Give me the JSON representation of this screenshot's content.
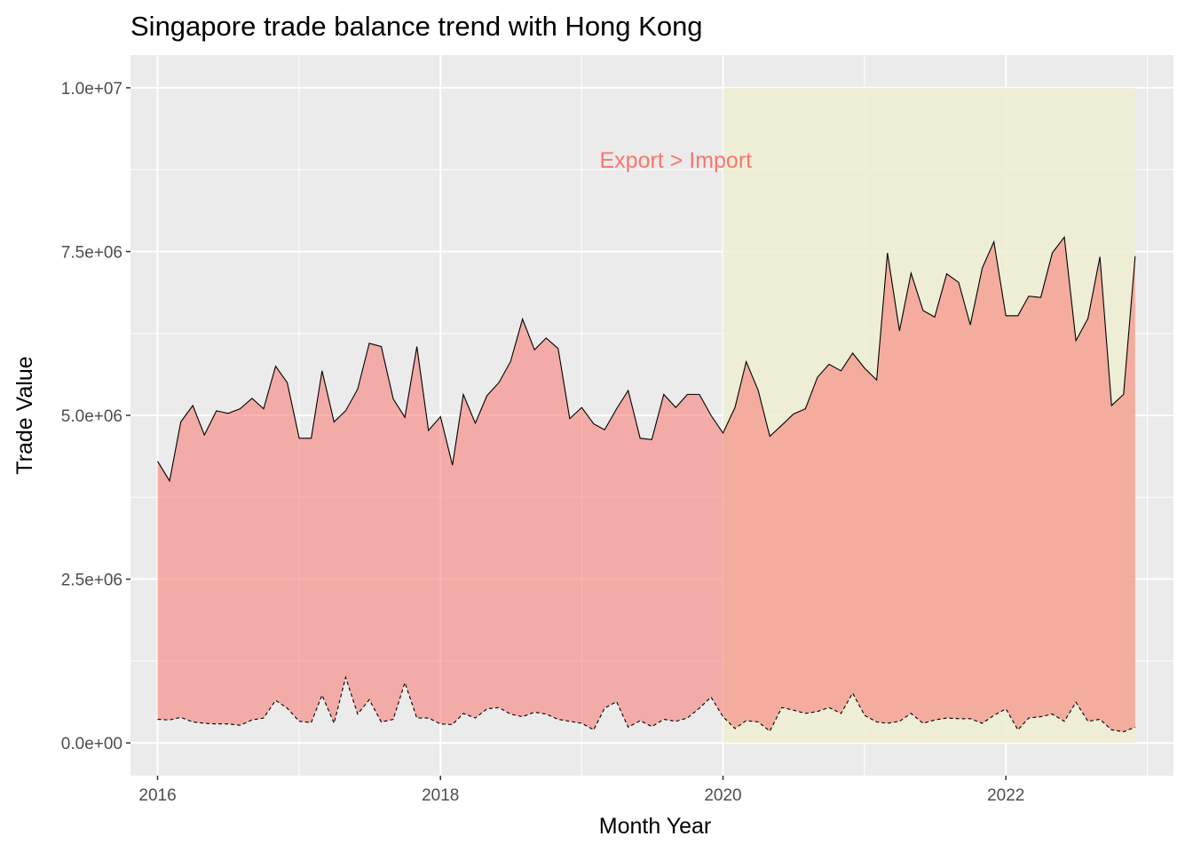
{
  "chart_data": {
    "type": "area",
    "title": "Singapore trade balance trend with Hong Kong",
    "xlabel": "Month Year",
    "ylabel": "Trade Value",
    "xlim": [
      "2015-10-23",
      "2023-03-10"
    ],
    "ylim": [
      -500000,
      10500000
    ],
    "x_ticks": [
      {
        "date": "2016-01-01",
        "label": "2016"
      },
      {
        "date": "2018-01-01",
        "label": "2018"
      },
      {
        "date": "2020-01-01",
        "label": "2020"
      },
      {
        "date": "2022-01-01",
        "label": "2022"
      }
    ],
    "y_ticks": [
      {
        "value": 0,
        "label": "0.0e+00"
      },
      {
        "value": 2500000,
        "label": "2.5e+06"
      },
      {
        "value": 5000000,
        "label": "5.0e+06"
      },
      {
        "value": 7500000,
        "label": "7.5e+06"
      },
      {
        "value": 10000000,
        "label": "1.0e+07"
      }
    ],
    "grid": true,
    "panel_background": "#ebebeb",
    "highlight_region": {
      "x_start": "2020-01-01",
      "x_end": "2022-12-01",
      "y_start": 0,
      "y_end": 10000000,
      "color": "#eeeed4"
    },
    "annotation": {
      "text": "Export > Import",
      "x": "2019-09-01",
      "y": 8900000,
      "color": "#f8766d"
    },
    "fill_color": "#f8766d",
    "series": [
      {
        "name": "Export",
        "line_style": "solid",
        "points": [
          [
            "2016-01-01",
            4300000
          ],
          [
            "2016-02-01",
            4000000
          ],
          [
            "2016-03-01",
            4900000
          ],
          [
            "2016-04-01",
            5150000
          ],
          [
            "2016-05-01",
            4700000
          ],
          [
            "2016-06-01",
            5070000
          ],
          [
            "2016-07-01",
            5030000
          ],
          [
            "2016-08-01",
            5100000
          ],
          [
            "2016-09-01",
            5260000
          ],
          [
            "2016-10-01",
            5100000
          ],
          [
            "2016-11-01",
            5750000
          ],
          [
            "2016-12-01",
            5500000
          ],
          [
            "2017-01-01",
            4650000
          ],
          [
            "2017-02-01",
            4650000
          ],
          [
            "2017-03-01",
            5680000
          ],
          [
            "2017-04-01",
            4900000
          ],
          [
            "2017-05-01",
            5070000
          ],
          [
            "2017-06-01",
            5400000
          ],
          [
            "2017-07-01",
            6100000
          ],
          [
            "2017-08-01",
            6050000
          ],
          [
            "2017-09-01",
            5250000
          ],
          [
            "2017-10-01",
            4970000
          ],
          [
            "2017-11-01",
            6050000
          ],
          [
            "2017-12-01",
            4770000
          ],
          [
            "2018-01-01",
            4980000
          ],
          [
            "2018-02-01",
            4240000
          ],
          [
            "2018-03-01",
            5320000
          ],
          [
            "2018-04-01",
            4880000
          ],
          [
            "2018-05-01",
            5300000
          ],
          [
            "2018-06-01",
            5500000
          ],
          [
            "2018-07-01",
            5820000
          ],
          [
            "2018-08-01",
            6470000
          ],
          [
            "2018-09-01",
            6000000
          ],
          [
            "2018-10-01",
            6180000
          ],
          [
            "2018-11-01",
            6020000
          ],
          [
            "2018-12-01",
            4950000
          ],
          [
            "2019-01-01",
            5120000
          ],
          [
            "2019-02-01",
            4870000
          ],
          [
            "2019-03-01",
            4780000
          ],
          [
            "2019-04-01",
            5100000
          ],
          [
            "2019-05-01",
            5380000
          ],
          [
            "2019-06-01",
            4650000
          ],
          [
            "2019-07-01",
            4630000
          ],
          [
            "2019-08-01",
            5320000
          ],
          [
            "2019-09-01",
            5120000
          ],
          [
            "2019-10-01",
            5320000
          ],
          [
            "2019-11-01",
            5320000
          ],
          [
            "2019-12-01",
            5000000
          ],
          [
            "2020-01-01",
            4730000
          ],
          [
            "2020-02-01",
            5120000
          ],
          [
            "2020-03-01",
            5820000
          ],
          [
            "2020-04-01",
            5380000
          ],
          [
            "2020-05-01",
            4680000
          ],
          [
            "2020-06-01",
            4850000
          ],
          [
            "2020-07-01",
            5020000
          ],
          [
            "2020-08-01",
            5100000
          ],
          [
            "2020-09-01",
            5580000
          ],
          [
            "2020-10-01",
            5780000
          ],
          [
            "2020-11-01",
            5680000
          ],
          [
            "2020-12-01",
            5950000
          ],
          [
            "2021-01-01",
            5720000
          ],
          [
            "2021-02-01",
            5540000
          ],
          [
            "2021-03-01",
            7480000
          ],
          [
            "2021-04-01",
            6290000
          ],
          [
            "2021-05-01",
            7170000
          ],
          [
            "2021-06-01",
            6600000
          ],
          [
            "2021-07-01",
            6500000
          ],
          [
            "2021-08-01",
            7160000
          ],
          [
            "2021-09-01",
            7030000
          ],
          [
            "2021-10-01",
            6380000
          ],
          [
            "2021-11-01",
            7250000
          ],
          [
            "2021-12-01",
            7650000
          ],
          [
            "2022-01-01",
            6520000
          ],
          [
            "2022-02-01",
            6520000
          ],
          [
            "2022-03-01",
            6820000
          ],
          [
            "2022-04-01",
            6800000
          ],
          [
            "2022-05-01",
            7480000
          ],
          [
            "2022-06-01",
            7720000
          ],
          [
            "2022-07-01",
            6140000
          ],
          [
            "2022-08-01",
            6480000
          ],
          [
            "2022-09-01",
            7420000
          ],
          [
            "2022-10-01",
            5150000
          ],
          [
            "2022-11-01",
            5320000
          ],
          [
            "2022-12-01",
            7430000
          ]
        ]
      },
      {
        "name": "Import",
        "line_style": "dashed",
        "points": [
          [
            "2016-01-01",
            360000
          ],
          [
            "2016-02-01",
            350000
          ],
          [
            "2016-03-01",
            390000
          ],
          [
            "2016-04-01",
            320000
          ],
          [
            "2016-05-01",
            300000
          ],
          [
            "2016-06-01",
            290000
          ],
          [
            "2016-07-01",
            290000
          ],
          [
            "2016-08-01",
            270000
          ],
          [
            "2016-09-01",
            350000
          ],
          [
            "2016-10-01",
            380000
          ],
          [
            "2016-11-01",
            650000
          ],
          [
            "2016-12-01",
            530000
          ],
          [
            "2017-01-01",
            330000
          ],
          [
            "2017-02-01",
            310000
          ],
          [
            "2017-03-01",
            730000
          ],
          [
            "2017-04-01",
            300000
          ],
          [
            "2017-05-01",
            1000000
          ],
          [
            "2017-06-01",
            440000
          ],
          [
            "2017-07-01",
            660000
          ],
          [
            "2017-08-01",
            320000
          ],
          [
            "2017-09-01",
            360000
          ],
          [
            "2017-10-01",
            920000
          ],
          [
            "2017-11-01",
            380000
          ],
          [
            "2017-12-01",
            380000
          ],
          [
            "2018-01-01",
            290000
          ],
          [
            "2018-02-01",
            280000
          ],
          [
            "2018-03-01",
            450000
          ],
          [
            "2018-04-01",
            380000
          ],
          [
            "2018-05-01",
            520000
          ],
          [
            "2018-06-01",
            540000
          ],
          [
            "2018-07-01",
            440000
          ],
          [
            "2018-08-01",
            400000
          ],
          [
            "2018-09-01",
            470000
          ],
          [
            "2018-10-01",
            440000
          ],
          [
            "2018-11-01",
            360000
          ],
          [
            "2018-12-01",
            330000
          ],
          [
            "2019-01-01",
            300000
          ],
          [
            "2019-02-01",
            200000
          ],
          [
            "2019-03-01",
            530000
          ],
          [
            "2019-04-01",
            630000
          ],
          [
            "2019-05-01",
            240000
          ],
          [
            "2019-06-01",
            340000
          ],
          [
            "2019-07-01",
            250000
          ],
          [
            "2019-08-01",
            360000
          ],
          [
            "2019-09-01",
            330000
          ],
          [
            "2019-10-01",
            380000
          ],
          [
            "2019-11-01",
            530000
          ],
          [
            "2019-12-01",
            700000
          ],
          [
            "2020-01-01",
            400000
          ],
          [
            "2020-02-01",
            220000
          ],
          [
            "2020-03-01",
            340000
          ],
          [
            "2020-04-01",
            320000
          ],
          [
            "2020-05-01",
            180000
          ],
          [
            "2020-06-01",
            540000
          ],
          [
            "2020-07-01",
            500000
          ],
          [
            "2020-08-01",
            450000
          ],
          [
            "2020-09-01",
            480000
          ],
          [
            "2020-10-01",
            540000
          ],
          [
            "2020-11-01",
            450000
          ],
          [
            "2020-12-01",
            760000
          ],
          [
            "2021-01-01",
            420000
          ],
          [
            "2021-02-01",
            320000
          ],
          [
            "2021-03-01",
            300000
          ],
          [
            "2021-04-01",
            330000
          ],
          [
            "2021-05-01",
            450000
          ],
          [
            "2021-06-01",
            300000
          ],
          [
            "2021-07-01",
            350000
          ],
          [
            "2021-08-01",
            380000
          ],
          [
            "2021-09-01",
            370000
          ],
          [
            "2021-10-01",
            370000
          ],
          [
            "2021-11-01",
            300000
          ],
          [
            "2021-12-01",
            420000
          ],
          [
            "2022-01-01",
            520000
          ],
          [
            "2022-02-01",
            200000
          ],
          [
            "2022-03-01",
            380000
          ],
          [
            "2022-04-01",
            400000
          ],
          [
            "2022-05-01",
            440000
          ],
          [
            "2022-06-01",
            330000
          ],
          [
            "2022-07-01",
            620000
          ],
          [
            "2022-08-01",
            330000
          ],
          [
            "2022-09-01",
            360000
          ],
          [
            "2022-10-01",
            200000
          ],
          [
            "2022-11-01",
            170000
          ],
          [
            "2022-12-01",
            240000
          ]
        ]
      }
    ]
  }
}
